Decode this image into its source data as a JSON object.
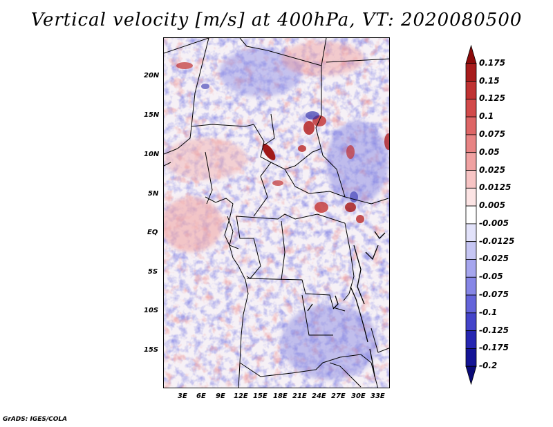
{
  "title": "Vertical velocity [m/s] at 400hPa, VT: 2020080500",
  "footer": "GrADS: IGES/COLA",
  "lat_labels": [
    "20N",
    "15N",
    "10N",
    "5N",
    "EQ",
    "5S",
    "10S",
    "15S"
  ],
  "lon_labels": [
    "3E",
    "6E",
    "9E",
    "12E",
    "15E",
    "18E",
    "21E",
    "24E",
    "27E",
    "30E",
    "33E"
  ],
  "colorbar": {
    "labels": [
      "0.175",
      "0.15",
      "0.125",
      "0.1",
      "0.075",
      "0.05",
      "0.025",
      "0.0125",
      "0.005",
      "-0.005",
      "-0.0125",
      "-0.025",
      "-0.05",
      "-0.075",
      "-0.1",
      "-0.125",
      "-0.175",
      "-0.2"
    ],
    "colors": [
      "#8b0a0a",
      "#a81c1c",
      "#c03232",
      "#d24a4a",
      "#de6666",
      "#e88484",
      "#f0a2a2",
      "#f7c4c4",
      "#fce4e4",
      "#ffffff",
      "#e2e2fa",
      "#c6c6f4",
      "#a6a6ee",
      "#8686e6",
      "#6464da",
      "#4444ca",
      "#2626b2",
      "#141496",
      "#0a0a78"
    ]
  },
  "map_palette": {
    "positive": "#e88e8e",
    "strong_positive": "#b02020",
    "negative": "#8e8ee8",
    "strong_negative": "#3030b0",
    "neutral": "#f4f0f6"
  }
}
